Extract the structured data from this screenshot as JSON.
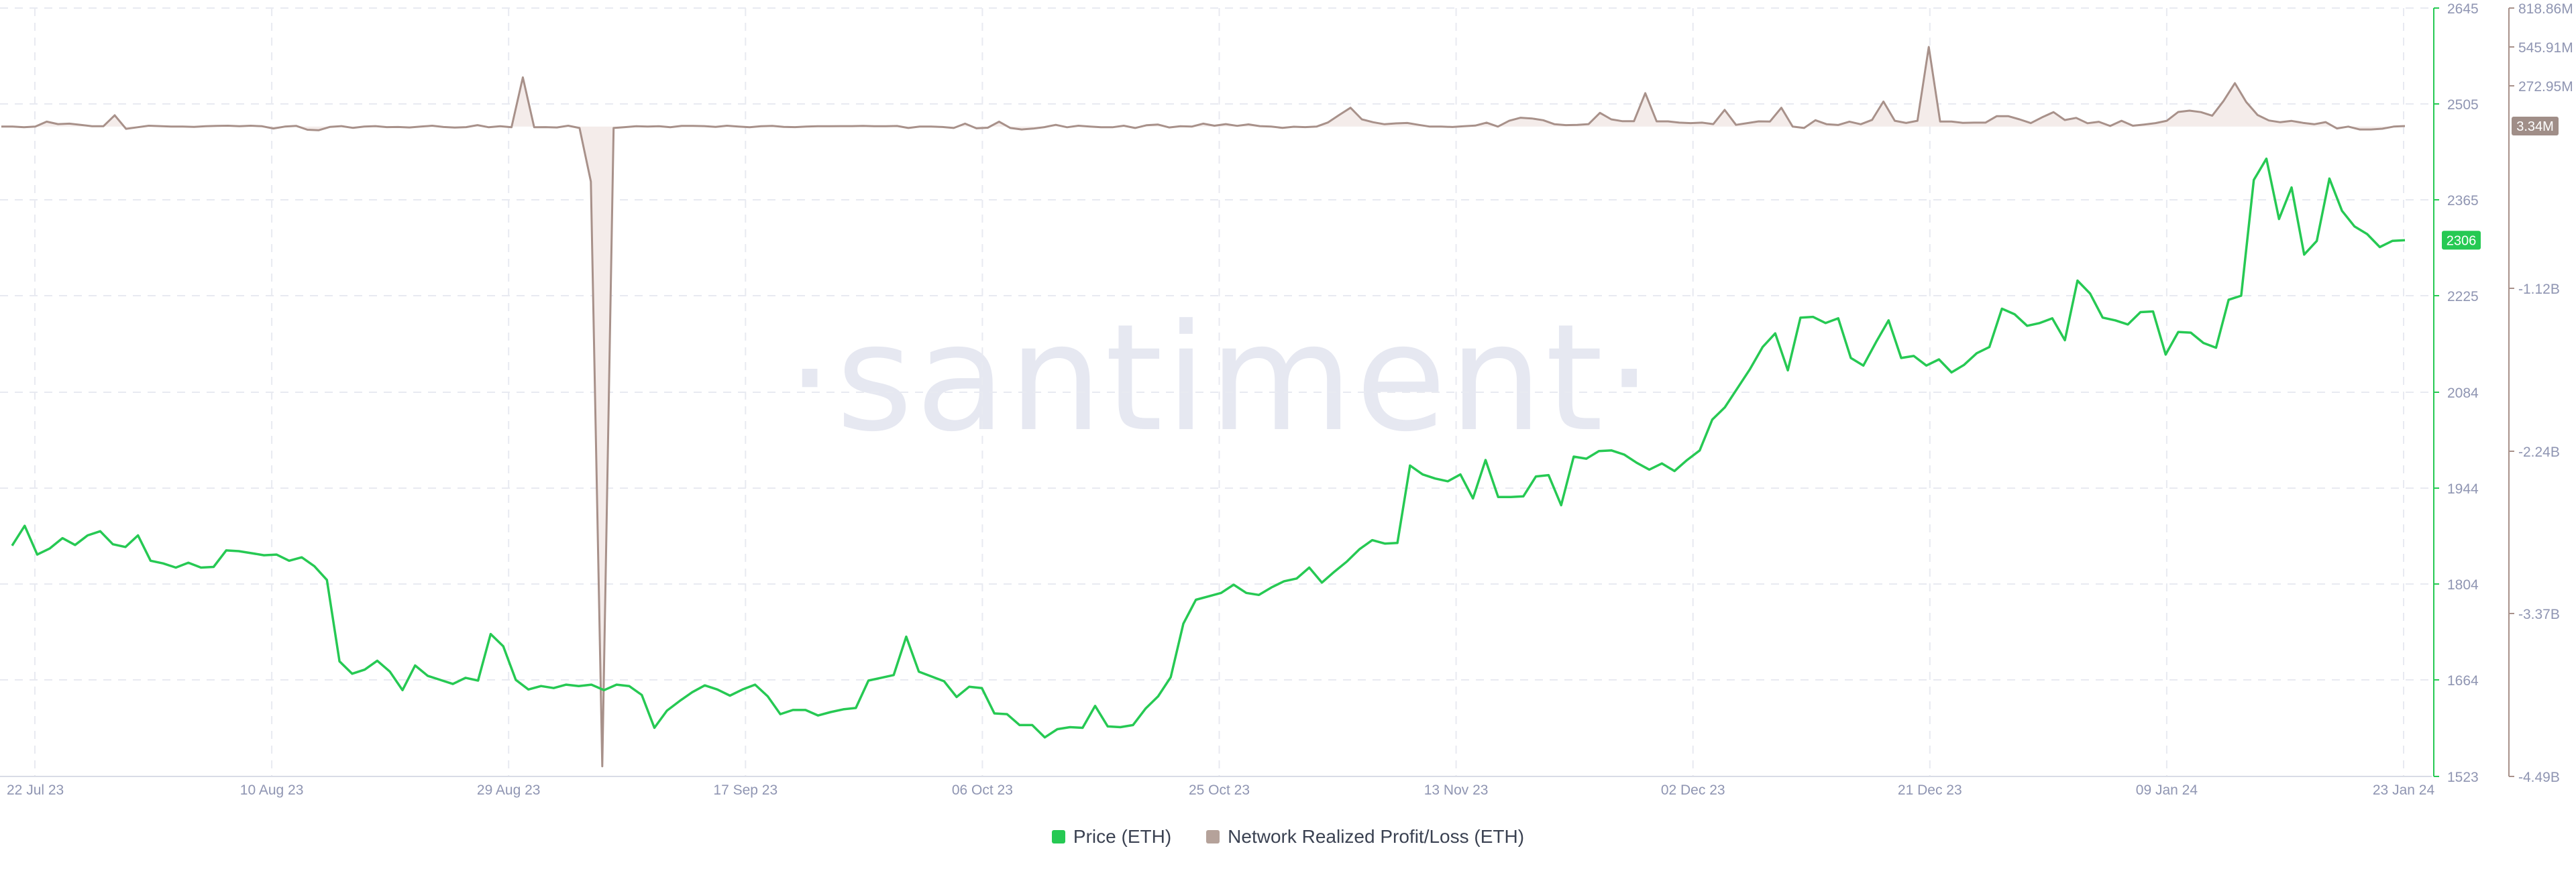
{
  "watermark": "·santiment·",
  "legend": [
    {
      "label": "Price (ETH)",
      "color": "#26c953"
    },
    {
      "label": "Network Realized Profit/Loss (ETH)",
      "color": "#b5a29a"
    }
  ],
  "colors": {
    "price_line": "#26c953",
    "nrpl_line": "#a8918a",
    "nrpl_fill": "#f4ecea",
    "axis_text": "#8f95b2",
    "grid": "#e8eaf1",
    "watermark": "#e6e8f1"
  },
  "chart_data": {
    "type": "line",
    "x_labels": [
      "22 Jul 23",
      "10 Aug 23",
      "29 Aug 23",
      "17 Sep 23",
      "06 Oct 23",
      "25 Oct 23",
      "13 Nov 23",
      "02 Dec 23",
      "21 Dec 23",
      "09 Jan 24",
      "23 Jan 24"
    ],
    "x_range": [
      "2023-07-22",
      "2024-01-23"
    ],
    "grid": true,
    "series": [
      {
        "name": "Price (ETH)",
        "axis": "price",
        "current_value_label": "2306",
        "values": [
          1860,
          1889,
          1847,
          1856,
          1871,
          1861,
          1875,
          1881,
          1862,
          1858,
          1875,
          1838,
          1834,
          1828,
          1835,
          1828,
          1829,
          1853,
          1852,
          1849,
          1846,
          1847,
          1838,
          1843,
          1830,
          1810,
          1691,
          1673,
          1679,
          1692,
          1676,
          1649,
          1685,
          1670,
          1664,
          1658,
          1667,
          1663,
          1731,
          1713,
          1664,
          1650,
          1655,
          1652,
          1657,
          1655,
          1657,
          1649,
          1657,
          1655,
          1642,
          1594,
          1619,
          1633,
          1646,
          1656,
          1650,
          1641,
          1650,
          1657,
          1640,
          1614,
          1620,
          1620,
          1612,
          1617,
          1621,
          1623,
          1663,
          1667,
          1671,
          1727,
          1676,
          1669,
          1662,
          1639,
          1654,
          1652,
          1615,
          1614,
          1598,
          1598,
          1580,
          1592,
          1595,
          1594,
          1626,
          1596,
          1595,
          1598,
          1622,
          1640,
          1668,
          1746,
          1781,
          1786,
          1791,
          1803,
          1791,
          1788,
          1799,
          1808,
          1812,
          1828,
          1806,
          1822,
          1837,
          1855,
          1868,
          1863,
          1864,
          1977,
          1964,
          1958,
          1954,
          1964,
          1929,
          1985,
          1931,
          1931,
          1932,
          1961,
          1963,
          1919,
          1990,
          1987,
          1998,
          1999,
          1993,
          1981,
          1971,
          1980,
          1969,
          1985,
          1999,
          2044,
          2062,
          2090,
          2118,
          2150,
          2170,
          2116,
          2193,
          2194,
          2185,
          2192,
          2134,
          2123,
          2157,
          2189,
          2134,
          2137,
          2123,
          2132,
          2113,
          2124,
          2141,
          2150,
          2206,
          2198,
          2181,
          2185,
          2192,
          2160,
          2247,
          2228,
          2193,
          2189,
          2183,
          2201,
          2202,
          2139,
          2172,
          2171,
          2156,
          2149,
          2219,
          2225,
          2394,
          2425,
          2337,
          2383,
          2285,
          2305,
          2396,
          2349,
          2326,
          2315,
          2296,
          2305,
          2306
        ]
      },
      {
        "name": "Network Realized Profit/Loss (ETH)",
        "axis": "nrpl",
        "current_value_label": "3.34M",
        "values_millions": [
          0,
          0,
          -5,
          0,
          34,
          17,
          20,
          12,
          2,
          2,
          78,
          -16,
          -5,
          6,
          3,
          0,
          0,
          -2,
          2,
          5,
          6,
          2,
          6,
          2,
          -13,
          0,
          5,
          -22,
          -25,
          -2,
          3,
          -9,
          0,
          3,
          -4,
          -3,
          -6,
          0,
          6,
          -3,
          -7,
          -4,
          10,
          -5,
          2,
          -5,
          340,
          -5,
          -4,
          -6,
          6,
          -10,
          -380,
          -4420,
          -10,
          -4,
          2,
          0,
          2,
          -5,
          5,
          5,
          3,
          -2,
          6,
          0,
          -5,
          2,
          5,
          -2,
          -4,
          0,
          2,
          2,
          3,
          3,
          5,
          2,
          2,
          4,
          -10,
          0,
          0,
          -3,
          -10,
          20,
          -12,
          -8,
          34,
          -10,
          -20,
          -14,
          -4,
          12,
          -5,
          6,
          0,
          -5,
          -5,
          6,
          -10,
          9,
          14,
          -6,
          2,
          0,
          20,
          6,
          17,
          5,
          15,
          3,
          0,
          -9,
          -1,
          -4,
          0,
          28,
          80,
          130,
          50,
          30,
          16,
          22,
          25,
          12,
          0,
          0,
          -3,
          2,
          7,
          27,
          0,
          40,
          61,
          56,
          44,
          16,
          10,
          12,
          17,
          95,
          50,
          37,
          37,
          231,
          36,
          36,
          27,
          24,
          27,
          17,
          115,
          12,
          24,
          36,
          35,
          130,
          0,
          -10,
          44,
          16,
          11,
          34,
          16,
          46,
          173,
          40,
          25,
          40,
          550,
          35,
          35,
          26,
          27,
          27,
          72,
          72,
          50,
          24,
          64,
          100,
          45,
          60,
          23,
          33,
          4,
          40,
          6,
          14,
          24,
          40,
          101,
          110,
          100,
          75,
          177,
          300,
          170,
          80,
          42,
          30,
          39,
          26,
          16,
          31,
          -13,
          0,
          -20,
          -20,
          -15,
          0,
          3.34
        ]
      }
    ],
    "y_axes": [
      {
        "id": "price",
        "ticks": [
          1523,
          1664,
          1804,
          1944,
          2084,
          2225,
          2365,
          2505,
          2645
        ],
        "range": [
          1523,
          2645
        ]
      },
      {
        "id": "nrpl",
        "tick_labels": [
          "818.86M",
          "545.91M",
          "272.95M",
          "-1.12B",
          "-2.24B",
          "-3.37B",
          "-4.49B"
        ],
        "range_millions": [
          -4490,
          818.86
        ]
      }
    ]
  }
}
